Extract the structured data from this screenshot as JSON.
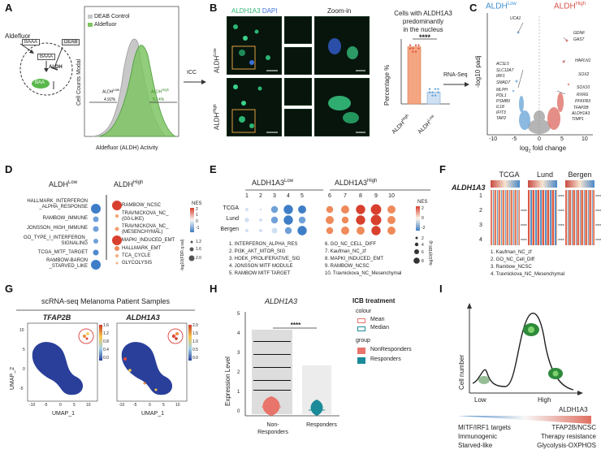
{
  "panels": [
    "A",
    "B",
    "C",
    "D",
    "E",
    "F",
    "G",
    "H",
    "I"
  ],
  "colors": {
    "low_blue": "#3e8fd0",
    "high_red": "#d6514a",
    "aldh_green": "#58b84a",
    "deab_grey": "#c8c8c8",
    "bar_orange": "#f4a582",
    "dot_teal": "#5a9bd5",
    "aldh1a3_green": "#2bb673",
    "nr_red": "#e8746b",
    "r_teal": "#1b8a99"
  },
  "panelA": {
    "aldefluor_label": "Aldefluor",
    "baaa1": "BAAA",
    "deab": "DEAB",
    "baaa2": "BAAA",
    "aldh_enzyme": "ALDH",
    "baa": "BAA",
    "arrow_label": "ICC",
    "ylabel": "Cell Counts Modal",
    "xlabel": "Aldefluor (ALDH) Activity",
    "legend": [
      "DEAB Control",
      "Aldefluor"
    ],
    "gate_low": "ALDH",
    "gate_low_sup": "Low",
    "gate_low_pct": "4.92%",
    "gate_high": "ALDH",
    "gate_high_sup": "High",
    "gate_high_pct": "5.14%"
  },
  "panelB": {
    "channel1": "ALDH1A3",
    "channel2": "DAPI",
    "zoom": "Zoom-in",
    "row_low": "ALDH",
    "row_low_sup": "Low",
    "row_high": "ALDH",
    "row_high_sup": "High",
    "bar_title_1": "Cells with ALDH1A3",
    "bar_title_2": "predominantly",
    "bar_title_3": "in the nucleus",
    "bar_ylabel": "Percentage %",
    "sig": "****",
    "bar_cats": [
      "ALDH",
      "ALDH"
    ],
    "bar_cat_sups": [
      "High",
      "Low"
    ],
    "arrow_label": "RNA-Seq"
  },
  "chart_data": [
    {
      "type": "bar",
      "panel": "B",
      "title": "Cells with ALDH1A3 predominantly in the nucleus",
      "categories": [
        "ALDH High",
        "ALDH Low"
      ],
      "values": [
        88,
        18
      ],
      "ylabel": "Percentage %",
      "ylim": [
        0,
        100
      ]
    },
    {
      "type": "scatter",
      "panel": "C",
      "xlabel": "log2 fold change",
      "ylabel": "-log10 padj",
      "xticks": [
        -10,
        -5,
        0,
        5,
        10
      ],
      "xlim": [
        -12,
        12
      ],
      "groups": [
        "ALDH Low",
        "ALDH High"
      ],
      "up_genes": [
        "GDNF",
        "GAS7",
        "HAPLN1",
        "SOX2",
        "SOX10",
        "RXRG",
        "PFKFB3",
        "TFAP2B",
        "ALDH1A3",
        "TIMP1"
      ],
      "down_genes": [
        "UCA1",
        "ACSL5",
        "SLC12A7",
        "IRF1",
        "SMAD7",
        "MLPH",
        "PDL1",
        "PSMB9",
        "IL18",
        "IFIT3",
        "TAP2"
      ]
    },
    {
      "type": "bar",
      "panel": "H",
      "title": "ALDH1A3",
      "categories": [
        "Non-Responders",
        "Responders"
      ],
      "ylabel": "Expression Level",
      "yticks": [
        0,
        1,
        2,
        3,
        4,
        5
      ],
      "ylim": [
        0,
        5.2
      ]
    }
  ],
  "panelC": {
    "group_low": "ALDH",
    "group_low_sup": "Low",
    "group_high": "ALDH",
    "group_high_sup": "High",
    "ylabel": "-log10 padj",
    "xlabel_a": "log",
    "xlabel_sub": "2",
    "xlabel_b": " fold change",
    "xticks": [
      "-10",
      "-5",
      "0",
      "5",
      "10"
    ]
  },
  "panelD": {
    "header_low": "ALDH",
    "header_low_sup": "Low",
    "header_high": "ALDH",
    "header_high_sup": "High",
    "low_terms": [
      "HALLMARK_INTERFERON",
      "_ALPHA_RESPONSE",
      "RAMBOW_IMMUNE",
      "JONSSON_HIGH_IMMUNE",
      "GO_TYPE_I_INTERFERON_",
      "SIGNALING",
      "TCGA_MITF_TARGET",
      "RAMBOW-BARON",
      "_STARVED_LIKE"
    ],
    "high_terms": [
      "RAMBOW_NCSC",
      "TRAVNICKOVA_NC_",
      "(G0-LIKE)",
      "TRAVNICKOVA_NC_",
      "(MESENCHYMAL)",
      "MAPKI_INDUCED_EMT",
      "HALLMARK_EMT",
      "TCA_CYCLE",
      "GLYCOLYSIS"
    ],
    "nes_title": "NES",
    "nes_ticks": [
      "2",
      "1",
      "0",
      "-1"
    ],
    "size_ticks": [
      "1.2",
      "1.6",
      "2.0"
    ],
    "size_label": "-log10(FDR.q.val)"
  },
  "panelE": {
    "header_low": "ALDH1A3",
    "header_low_sup": "Low",
    "header_high": "ALDH1A3",
    "header_high_sup": "High",
    "cols": [
      "1",
      "2",
      "3",
      "4",
      "5",
      "6",
      "7",
      "8",
      "9",
      "10"
    ],
    "rows": [
      "TCGA",
      "Lund",
      "Bergen"
    ],
    "nes_title": "NES",
    "nes_ticks": [
      "2",
      "0",
      "-2"
    ],
    "size_ticks": [
      "2",
      "4",
      "6",
      "8"
    ],
    "size_label": "-log10(FDR.q)",
    "legend_left": [
      "1. INTERFERON_ALPHA_RES",
      "2. PI3K_AKT_MTOR_SIG",
      "3. HOEK_PROLIFERATIVE_SIG",
      "4. JONSSON MITF MODULE",
      "5. RAMBOW MITF TARGET"
    ],
    "legend_right": [
      "6. GO_NC_CELL_DIFF",
      "7. Kaufman_NC_zf",
      "8. MAPKI_INDUCED_EMT",
      "9. RAMBOW_NCSC",
      "10. Travnickova_NC_Mesenchymal"
    ]
  },
  "panelF": {
    "gene": "ALDH1A3",
    "cohorts": [
      "TCGA",
      "Lund",
      "Bergen"
    ],
    "rows": [
      "1",
      "2",
      "3",
      "4"
    ],
    "sig": "****",
    "legend": [
      "1. Kaufman_NC_zf",
      "2. GO_NC_Cell_Diff",
      "3. Rambow_NCSC",
      "4. Travnickova_NC_Mesenchymal"
    ]
  },
  "panelG": {
    "title": "scRNA-seq Melanoma Patient Samples",
    "gene1": "TFAP2B",
    "gene2": "ALDH1A3",
    "ylabel": "UMAP_2",
    "xlabel": "UMAP_1",
    "xticks": [
      "-10",
      "-5",
      "0",
      "5",
      "10"
    ],
    "yticks": [
      "10",
      "5",
      "0",
      "-5"
    ],
    "cbar1": [
      "1.6",
      "1.2",
      "0.8",
      "0.4",
      "0.0"
    ],
    "cbar2": [
      "2.0",
      "1.5",
      "1.0",
      "0.5",
      "0.0"
    ]
  },
  "panelH": {
    "title": "ALDH1A3",
    "ylabel": "Expression Level",
    "yticks": [
      "5",
      "4",
      "3",
      "2",
      "1",
      "0"
    ],
    "sig": "****",
    "cat1_a": "Non-",
    "cat1_b": "Responders",
    "cat2": "Responders",
    "legend_title": "ICB treatment",
    "colour_title": "colour",
    "colour_items": [
      "Mean",
      "Median"
    ],
    "group_title": "group",
    "group_items": [
      "NonResponders",
      "Responders"
    ]
  },
  "panelI": {
    "ylabel": "Cell number",
    "x_low": "Low",
    "x_high": "High",
    "x_gene": "ALDH1A3",
    "left_lines": [
      "MITF/IRF1 targets",
      "Immunogenic",
      "Starved-like"
    ],
    "right_lines": [
      "TFAP2B/NCSC",
      "Therapy resistance",
      "Glycolysis-OXPHOS"
    ]
  }
}
